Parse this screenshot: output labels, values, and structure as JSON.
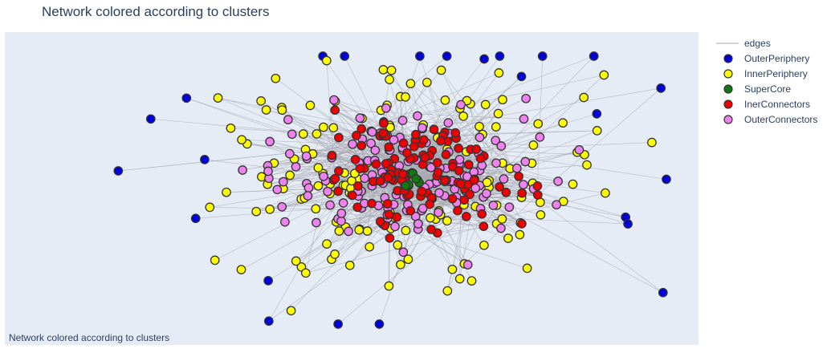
{
  "title": "Network colored according to clusters",
  "annotation": "Network colored according to clusters",
  "chart_data": {
    "type": "network",
    "background": "#e5ecf6",
    "edge_color": "#a8a8b0",
    "node_outline": "#333333",
    "legend": [
      {
        "name": "edges",
        "kind": "line",
        "color": "#a8a8b0"
      },
      {
        "name": "OuterPeriphery",
        "kind": "marker",
        "color": "#0000dd"
      },
      {
        "name": "InnerPeriphery",
        "kind": "marker",
        "color": "#ffff00"
      },
      {
        "name": "SuperCore",
        "kind": "marker",
        "color": "#117711"
      },
      {
        "name": "InerConnectors",
        "kind": "marker",
        "color": "#ee0000"
      },
      {
        "name": "OuterConnectors",
        "kind": "marker",
        "color": "#ee82ee"
      }
    ],
    "node_counts": {
      "OuterPeriphery": 24,
      "InnerPeriphery": 150,
      "SuperCore": 6,
      "InerConnectors": 120,
      "OuterConnectors": 150
    }
  }
}
